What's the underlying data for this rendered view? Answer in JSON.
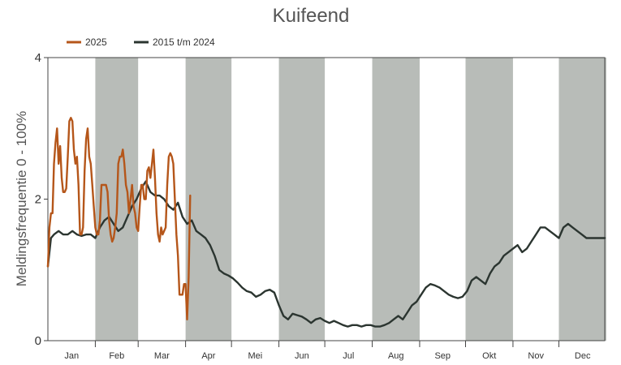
{
  "chart_data": {
    "type": "line",
    "title": "Kuifeend",
    "ylabel": "Meldingsfrequentie 0 - 100%",
    "xlabel": "",
    "ylim": [
      0,
      4
    ],
    "yticks": [
      0,
      2,
      4
    ],
    "months": [
      "Jan",
      "Feb",
      "Mar",
      "Apr",
      "Mei",
      "Jun",
      "Jul",
      "Aug",
      "Sep",
      "Okt",
      "Nov",
      "Dec"
    ],
    "shaded_months": [
      "Feb",
      "Apr",
      "Jun",
      "Aug",
      "Okt",
      "Dec"
    ],
    "shade_color": "#b8bcb8",
    "legend_position": "top-left",
    "series": [
      {
        "name": "2025",
        "color": "#b5561a",
        "x": [
          1,
          2,
          3,
          4,
          5,
          6,
          7,
          8,
          9,
          10,
          11,
          12,
          13,
          14,
          15,
          16,
          17,
          18,
          19,
          20,
          21,
          22,
          23,
          24,
          25,
          26,
          27,
          28,
          29,
          30,
          31,
          32,
          33,
          34,
          35,
          36,
          37,
          38,
          39,
          40,
          41,
          42,
          43,
          44,
          45,
          46,
          47,
          48,
          49,
          50,
          51,
          52,
          53,
          54,
          55,
          56,
          57,
          58,
          59,
          60,
          61,
          62,
          63,
          64,
          65,
          66,
          67,
          68,
          69,
          70,
          71,
          72,
          73,
          74,
          75,
          76,
          77,
          78,
          79,
          80,
          81,
          82,
          83,
          84,
          85,
          86,
          87,
          88,
          89,
          90,
          91,
          92,
          93,
          94,
          95,
          96,
          97,
          98,
          99,
          100,
          101,
          102,
          103,
          104,
          105,
          106,
          107,
          108,
          109,
          110,
          111,
          112,
          113,
          114,
          115,
          116,
          117,
          118,
          119,
          120,
          121,
          122,
          123,
          124,
          125,
          126,
          127,
          128,
          129,
          130,
          131,
          132
        ],
        "values": [
          1.05,
          1.6,
          1.8,
          1.8,
          2.5,
          2.8,
          3.0,
          2.5,
          2.75,
          2.3,
          2.1,
          2.1,
          2.15,
          2.6,
          3.1,
          3.15,
          3.1,
          2.7,
          2.5,
          2.6,
          2.2,
          1.5,
          1.5,
          1.6,
          2.4,
          2.85,
          3.0,
          2.6,
          2.5,
          2.2,
          1.9,
          1.6,
          1.5,
          1.5,
          1.7,
          2.2,
          2.2,
          2.2,
          2.2,
          2.1,
          1.7,
          1.5,
          1.4,
          1.45,
          1.6,
          1.8,
          2.5,
          2.6,
          2.6,
          2.7,
          2.5,
          2.2,
          2.1,
          1.8,
          2.0,
          2.2,
          1.9,
          1.8,
          1.6,
          1.55,
          1.9,
          2.2,
          2.2,
          2.0,
          2.0,
          2.4,
          2.45,
          2.3,
          2.5,
          2.7,
          2.3,
          1.8,
          1.5,
          1.4,
          1.6,
          1.5,
          1.55,
          1.6,
          2.2,
          2.6,
          2.65,
          2.6,
          2.5,
          2.0,
          1.5,
          1.2,
          0.65,
          0.65,
          0.65,
          0.8,
          0.8,
          0.3,
          0.9,
          2.05,
          null,
          null,
          null,
          null,
          null,
          null,
          null,
          null,
          null,
          null,
          null,
          null,
          null,
          null,
          null,
          null,
          null,
          null,
          null,
          null,
          null,
          null,
          null,
          null,
          null,
          null,
          null,
          null,
          null,
          null,
          null,
          null,
          null,
          null,
          null,
          null,
          null,
          null
        ]
      },
      {
        "name": "2015 t/m 2024",
        "color": "#2b3530",
        "x": [
          1,
          3,
          5,
          8,
          11,
          14,
          17,
          20,
          23,
          26,
          29,
          32,
          35,
          38,
          41,
          44,
          47,
          50,
          53,
          56,
          59,
          62,
          65,
          68,
          71,
          74,
          77,
          80,
          83,
          86,
          89,
          92,
          95,
          98,
          101,
          104,
          107,
          110,
          113,
          116,
          119,
          122,
          125,
          128,
          131,
          134,
          137,
          140,
          143,
          146,
          149,
          152,
          155,
          158,
          161,
          164,
          167,
          170,
          173,
          176,
          179,
          182,
          185,
          188,
          191,
          194,
          197,
          200,
          203,
          206,
          209,
          212,
          215,
          218,
          221,
          224,
          227,
          230,
          233,
          236,
          239,
          242,
          245,
          248,
          251,
          254,
          257,
          260,
          263,
          266,
          269,
          272,
          275,
          278,
          281,
          284,
          287,
          290,
          293,
          296,
          299,
          302,
          305,
          308,
          311,
          314,
          317,
          320,
          323,
          326,
          329,
          332,
          335,
          338,
          341,
          344,
          347,
          350,
          353,
          356,
          359,
          362,
          365
        ],
        "values": [
          1.05,
          1.45,
          1.5,
          1.55,
          1.5,
          1.5,
          1.55,
          1.5,
          1.48,
          1.5,
          1.5,
          1.45,
          1.6,
          1.7,
          1.75,
          1.65,
          1.55,
          1.6,
          1.75,
          1.9,
          2.0,
          2.15,
          2.25,
          2.1,
          2.05,
          2.05,
          2.0,
          1.9,
          1.85,
          1.95,
          1.75,
          1.65,
          1.7,
          1.55,
          1.5,
          1.45,
          1.35,
          1.2,
          1.0,
          0.95,
          0.92,
          0.88,
          0.82,
          0.75,
          0.7,
          0.68,
          0.62,
          0.65,
          0.7,
          0.72,
          0.68,
          0.5,
          0.35,
          0.3,
          0.38,
          0.36,
          0.34,
          0.3,
          0.25,
          0.3,
          0.32,
          0.28,
          0.25,
          0.28,
          0.25,
          0.22,
          0.2,
          0.22,
          0.22,
          0.2,
          0.22,
          0.22,
          0.2,
          0.2,
          0.22,
          0.25,
          0.3,
          0.35,
          0.3,
          0.4,
          0.5,
          0.55,
          0.65,
          0.75,
          0.8,
          0.78,
          0.75,
          0.7,
          0.65,
          0.62,
          0.6,
          0.62,
          0.7,
          0.85,
          0.9,
          0.85,
          0.8,
          0.95,
          1.05,
          1.1,
          1.2,
          1.25,
          1.3,
          1.35,
          1.25,
          1.3,
          1.4,
          1.5,
          1.6,
          1.6,
          1.55,
          1.5,
          1.45,
          1.6,
          1.65,
          1.6,
          1.55,
          1.5,
          1.45,
          1.45,
          1.45,
          1.45,
          1.45
        ]
      }
    ]
  }
}
